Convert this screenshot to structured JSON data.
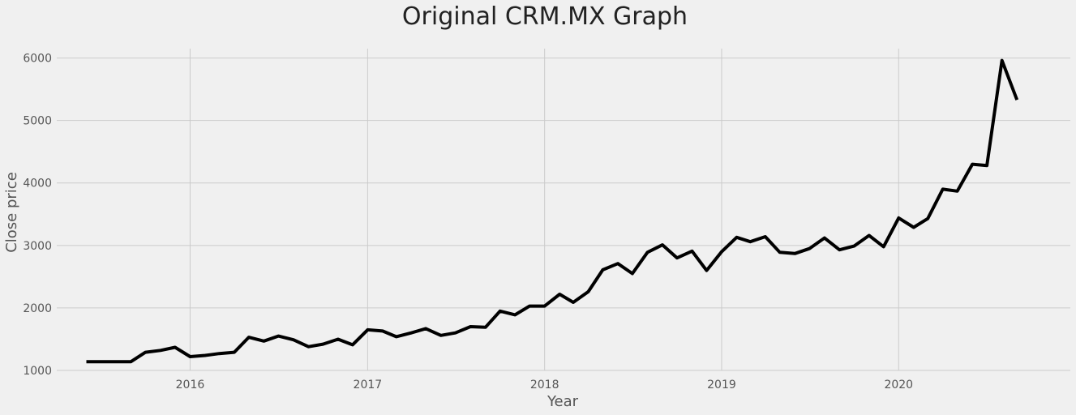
{
  "chart_data": {
    "type": "line",
    "title": "Original CRM.MX Graph",
    "xlabel": "Year",
    "ylabel": "Close price",
    "x_tick_labels": [
      "2016",
      "2017",
      "2018",
      "2019",
      "2020"
    ],
    "y_tick_labels": [
      "1000",
      "2000",
      "3000",
      "4000",
      "5000",
      "6000"
    ],
    "xlim": [
      "2015-04-01",
      "2020-12-20"
    ],
    "ylim": [
      1000,
      6150
    ],
    "grid": true,
    "series": [
      {
        "color": "#000000",
        "x": [
          "2015-06-01",
          "2015-07-01",
          "2015-08-01",
          "2015-09-01",
          "2015-10-01",
          "2015-11-01",
          "2015-12-01",
          "2016-01-01",
          "2016-02-01",
          "2016-03-01",
          "2016-04-01",
          "2016-05-01",
          "2016-06-01",
          "2016-07-01",
          "2016-08-01",
          "2016-09-01",
          "2016-10-01",
          "2016-11-01",
          "2016-12-01",
          "2017-01-01",
          "2017-02-01",
          "2017-03-01",
          "2017-04-01",
          "2017-05-01",
          "2017-06-01",
          "2017-07-01",
          "2017-08-01",
          "2017-09-01",
          "2017-10-01",
          "2017-11-01",
          "2017-12-01",
          "2018-01-01",
          "2018-02-01",
          "2018-03-01",
          "2018-04-01",
          "2018-05-01",
          "2018-06-01",
          "2018-07-01",
          "2018-08-01",
          "2018-09-01",
          "2018-10-01",
          "2018-11-01",
          "2018-12-01",
          "2019-01-01",
          "2019-02-01",
          "2019-03-01",
          "2019-04-01",
          "2019-05-01",
          "2019-06-01",
          "2019-07-01",
          "2019-08-01",
          "2019-09-01",
          "2019-10-01",
          "2019-11-01",
          "2019-12-01",
          "2020-01-01",
          "2020-02-01",
          "2020-03-01",
          "2020-04-01",
          "2020-05-01",
          "2020-06-01",
          "2020-07-01",
          "2020-08-01",
          "2020-09-01"
        ],
        "y": [
          1140,
          1140,
          1140,
          1140,
          1290,
          1320,
          1370,
          1220,
          1240,
          1270,
          1290,
          1530,
          1470,
          1550,
          1490,
          1380,
          1420,
          1500,
          1410,
          1650,
          1630,
          1540,
          1600,
          1670,
          1560,
          1600,
          1700,
          1690,
          1950,
          1890,
          2030,
          2030,
          2220,
          2090,
          2260,
          2610,
          2710,
          2550,
          2890,
          3010,
          2800,
          2910,
          2600,
          2900,
          3130,
          3060,
          3140,
          2890,
          2870,
          2950,
          3120,
          2930,
          2990,
          3160,
          2980,
          3440,
          3290,
          3430,
          3900,
          3870,
          4300,
          4280,
          5960,
          5330
        ]
      }
    ]
  }
}
